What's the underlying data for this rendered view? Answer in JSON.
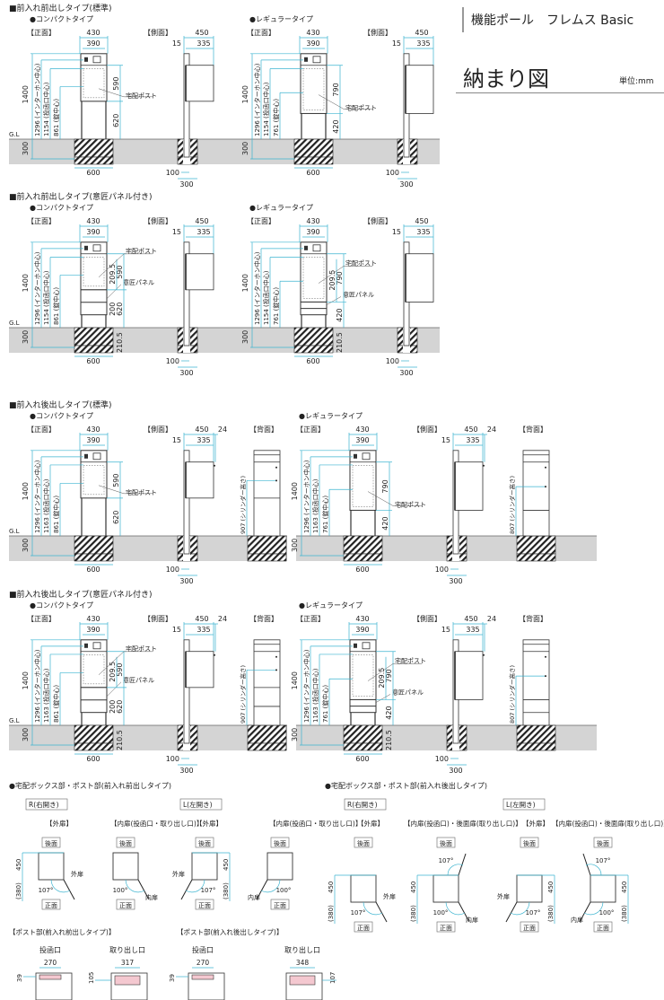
{
  "header": {
    "series_title": "機能ポール　フレムス Basic",
    "page_title": "納まり図",
    "unit": "単位:mm"
  },
  "colors": {
    "dimension": "#3cb4d0",
    "ground": "#d4d4d4",
    "outline": "#333333",
    "opening": "#f4c8d0"
  },
  "sections": [
    {
      "title": "■前入れ前出しタイプ(標準)",
      "variants": [
        {
          "name": "●コンパクトタイプ",
          "front": {
            "label": "【正面】",
            "width_outer": "430",
            "width_inner": "390",
            "height": "1400",
            "intercom": "1296 (インターホン中心)",
            "slot": "1154 (投函口中心)",
            "lock": "861 (錠中心)",
            "upper": "590",
            "lower": "620",
            "depth": "300",
            "footing": "600",
            "gl": "G.L",
            "post_label": "宅配ポスト"
          },
          "side": {
            "label": "【側面】",
            "depth": "450",
            "offset": "15",
            "box_depth": "335",
            "pole": "100",
            "footing": "300"
          }
        },
        {
          "name": "●レギュラータイプ",
          "front": {
            "label": "【正面】",
            "width_outer": "430",
            "width_inner": "390",
            "height": "1400",
            "intercom": "1296 (インターホン中心)",
            "slot": "1154 (投函口中心)",
            "lock": "761 (錠中心)",
            "upper": "790",
            "lower": "420",
            "depth": "300",
            "footing": "600",
            "post_label": "宅配ポスト"
          },
          "side": {
            "label": "【側面】",
            "depth": "450",
            "offset": "15",
            "box_depth": "335",
            "pole": "100",
            "footing": "300"
          }
        }
      ]
    },
    {
      "title": "■前入れ前出しタイプ(意匠パネル付き)",
      "variants": [
        {
          "name": "●コンパクトタイプ",
          "front": {
            "label": "【正面】",
            "width_outer": "430",
            "width_inner": "390",
            "height": "1400",
            "intercom": "1296 (インターホン中心)",
            "slot": "1154 (投函口中心)",
            "lock": "861 (錠中心)",
            "upper": "590",
            "lower": "620",
            "depth": "300",
            "footing": "600",
            "gl": "G.L",
            "post_label": "宅配ポスト",
            "panel_label": "意匠パネル",
            "panel_gap": "209.5",
            "panel_height": "200",
            "panel_base": "210.5"
          },
          "side": {
            "label": "【側面】",
            "depth": "450",
            "offset": "15",
            "box_depth": "335",
            "pole": "100",
            "footing": "300"
          }
        },
        {
          "name": "●レギュラータイプ",
          "front": {
            "label": "【正面】",
            "width_outer": "430",
            "width_inner": "390",
            "height": "1400",
            "intercom": "1296 (インターホン中心)",
            "slot": "1154 (投函口中心)",
            "lock": "761 (錠中心)",
            "upper": "790",
            "lower": "420",
            "depth": "300",
            "footing": "600",
            "gl": "G.L",
            "post_label": "宅配ポスト",
            "panel_label": "意匠パネル",
            "panel_gap": "209.5",
            "panel_base": "210.5"
          },
          "side": {
            "label": "【側面】",
            "depth": "450",
            "offset": "15",
            "box_depth": "335",
            "pole": "100",
            "footing": "300"
          }
        }
      ]
    },
    {
      "title": "■前入れ後出しタイプ(標準)",
      "variants": [
        {
          "name": "●コンパクトタイプ",
          "front": {
            "label": "【正面】",
            "width_outer": "430",
            "width_inner": "390",
            "height": "1400",
            "intercom": "1296 (インターホン中心)",
            "slot": "1163 (投函口中心)",
            "lock": "861 (錠中心)",
            "upper": "590",
            "lower": "620",
            "depth": "300",
            "footing": "600",
            "gl": "G.L",
            "post_label": "宅配ポスト"
          },
          "side": {
            "label": "【側面】",
            "depth": "450",
            "offset": "15",
            "box_depth": "335",
            "handle": "24",
            "pole": "100",
            "footing": "300"
          },
          "back": {
            "label": "【背面】",
            "cylinder": "907 (シリンダー高さ)"
          }
        },
        {
          "name": "●レギュラータイプ",
          "front": {
            "label": "【正面】",
            "width_outer": "430",
            "width_inner": "390",
            "height": "1400",
            "intercom": "1296 (インターホン中心)",
            "slot": "1163 (投函口中心)",
            "lock": "761 (錠中心)",
            "upper": "790",
            "lower": "420",
            "depth": "300",
            "footing": "600",
            "gl": "G.L",
            "post_label": "宅配ポスト"
          },
          "side": {
            "label": "【側面】",
            "depth": "450",
            "offset": "15",
            "box_depth": "335",
            "handle": "24",
            "pole": "100",
            "footing": "300"
          },
          "back": {
            "label": "【背面】",
            "cylinder": "807 (シリンダー高さ)"
          }
        }
      ]
    },
    {
      "title": "■前入れ後出しタイプ(意匠パネル付き)",
      "variants": [
        {
          "name": "●コンパクトタイプ",
          "front": {
            "label": "【正面】",
            "width_outer": "430",
            "width_inner": "390",
            "height": "1400",
            "intercom": "1296 (インターホン中心)",
            "slot": "1163 (投函口中心)",
            "lock": "861 (錠中心)",
            "upper": "590",
            "lower": "620",
            "depth": "300",
            "footing": "600",
            "gl": "G.L",
            "post_label": "宅配ポスト",
            "panel_label": "意匠パネル",
            "panel_gap": "209.5",
            "panel_height": "200",
            "panel_base": "210.5"
          },
          "side": {
            "label": "【側面】",
            "depth": "450",
            "offset": "15",
            "box_depth": "335",
            "handle": "24",
            "pole": "100",
            "footing": "300"
          },
          "back": {
            "label": "【背面】",
            "cylinder": "907 (シリンダー高さ)"
          }
        },
        {
          "name": "●レギュラータイプ",
          "front": {
            "label": "【正面】",
            "width_outer": "430",
            "width_inner": "390",
            "height": "1400",
            "intercom": "1296 (インターホン中心)",
            "slot": "1163 (投函口中心)",
            "lock": "761 (錠中心)",
            "upper": "790",
            "lower": "420",
            "depth": "300",
            "footing": "600",
            "gl": "G.L",
            "post_label": "宅配ポスト",
            "panel_label": "意匠パネル",
            "panel_gap": "209.5",
            "panel_base": "210.5"
          },
          "side": {
            "label": "【側面】",
            "depth": "450",
            "offset": "15",
            "box_depth": "335",
            "handle": "24",
            "pole": "100",
            "footing": "300"
          },
          "back": {
            "label": "【背面】",
            "cylinder": "807 (シリンダー高さ)"
          }
        }
      ]
    }
  ],
  "door_plans": [
    {
      "title": "●宅配ボックス部・ポスト部(前入れ前出しタイプ)",
      "groups": [
        {
          "label": "R(右開き)",
          "outer": "【外扉】",
          "inner": "【内扉(投函口・取り出し口)】"
        },
        {
          "label": "L(左開き)",
          "outer": "【外扉】",
          "inner": "【内扉(投函口・取り出し口)】"
        }
      ]
    },
    {
      "title": "●宅配ボックス部・ポスト部(前入れ後出しタイプ)",
      "groups": [
        {
          "label": "R(右開き)",
          "outer": "【外扉】",
          "inner": "【内扉(投函口)・後面扉(取り出し口)】"
        },
        {
          "label": "L(左開き)",
          "outer": "【外扉】",
          "inner": "【内扉(投函口)・後面扉(取り出し口)】"
        }
      ]
    }
  ],
  "plan_labels": {
    "rear": "後面",
    "front": "正面",
    "depth": "450",
    "swing": "(380)",
    "outer_angle": "107°",
    "inner_angle": "100°",
    "outer_door": "外扉",
    "inner_door": "内扉"
  },
  "post_parts": [
    {
      "title": "【ポスト部(前入れ前出しタイプ)】",
      "slot_label": "投函口",
      "slot_width": "270",
      "slot_height": "39",
      "outlet_label": "取り出し口",
      "outlet_width": "317",
      "outlet_height": "105"
    },
    {
      "title": "【ポスト部(前入れ後出しタイプ)】",
      "slot_label": "投函口",
      "slot_width": "270",
      "slot_height": "39",
      "outlet_label": "取り出し口",
      "outlet_width": "348",
      "outlet_height": "107"
    }
  ]
}
